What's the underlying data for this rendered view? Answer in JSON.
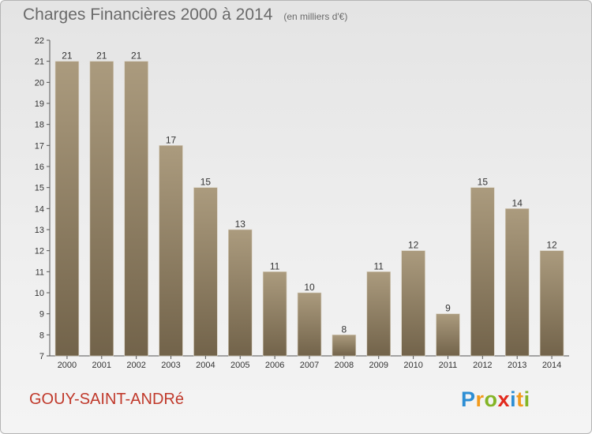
{
  "header": {
    "title": "Charges Financières 2000 à 2014",
    "subtitle": "(en milliers d'€)"
  },
  "footer": {
    "commune": "GOUY-SAINT-ANDRé",
    "logo": {
      "p": "P",
      "r": "r",
      "o": "o",
      "x": "x",
      "i1": "i",
      "t": "t",
      "i2": "i"
    }
  },
  "colors": {
    "bar_top": "#ab9b7e",
    "bar_bottom": "#72634a",
    "commune": "#c0392b"
  },
  "chart_data": {
    "type": "bar",
    "title": "Charges Financières 2000 à 2014",
    "subtitle": "(en milliers d'€)",
    "categories": [
      "2000",
      "2001",
      "2002",
      "2003",
      "2004",
      "2005",
      "2006",
      "2007",
      "2008",
      "2009",
      "2010",
      "2011",
      "2012",
      "2013",
      "2014"
    ],
    "values": [
      21,
      21,
      21,
      17,
      15,
      13,
      11,
      10,
      8,
      11,
      12,
      9,
      15,
      14,
      12
    ],
    "ylim": [
      7,
      22
    ],
    "yticks": [
      7,
      8,
      9,
      10,
      11,
      12,
      13,
      14,
      15,
      16,
      17,
      18,
      19,
      20,
      21,
      22
    ],
    "grid": false,
    "legend": "none"
  }
}
